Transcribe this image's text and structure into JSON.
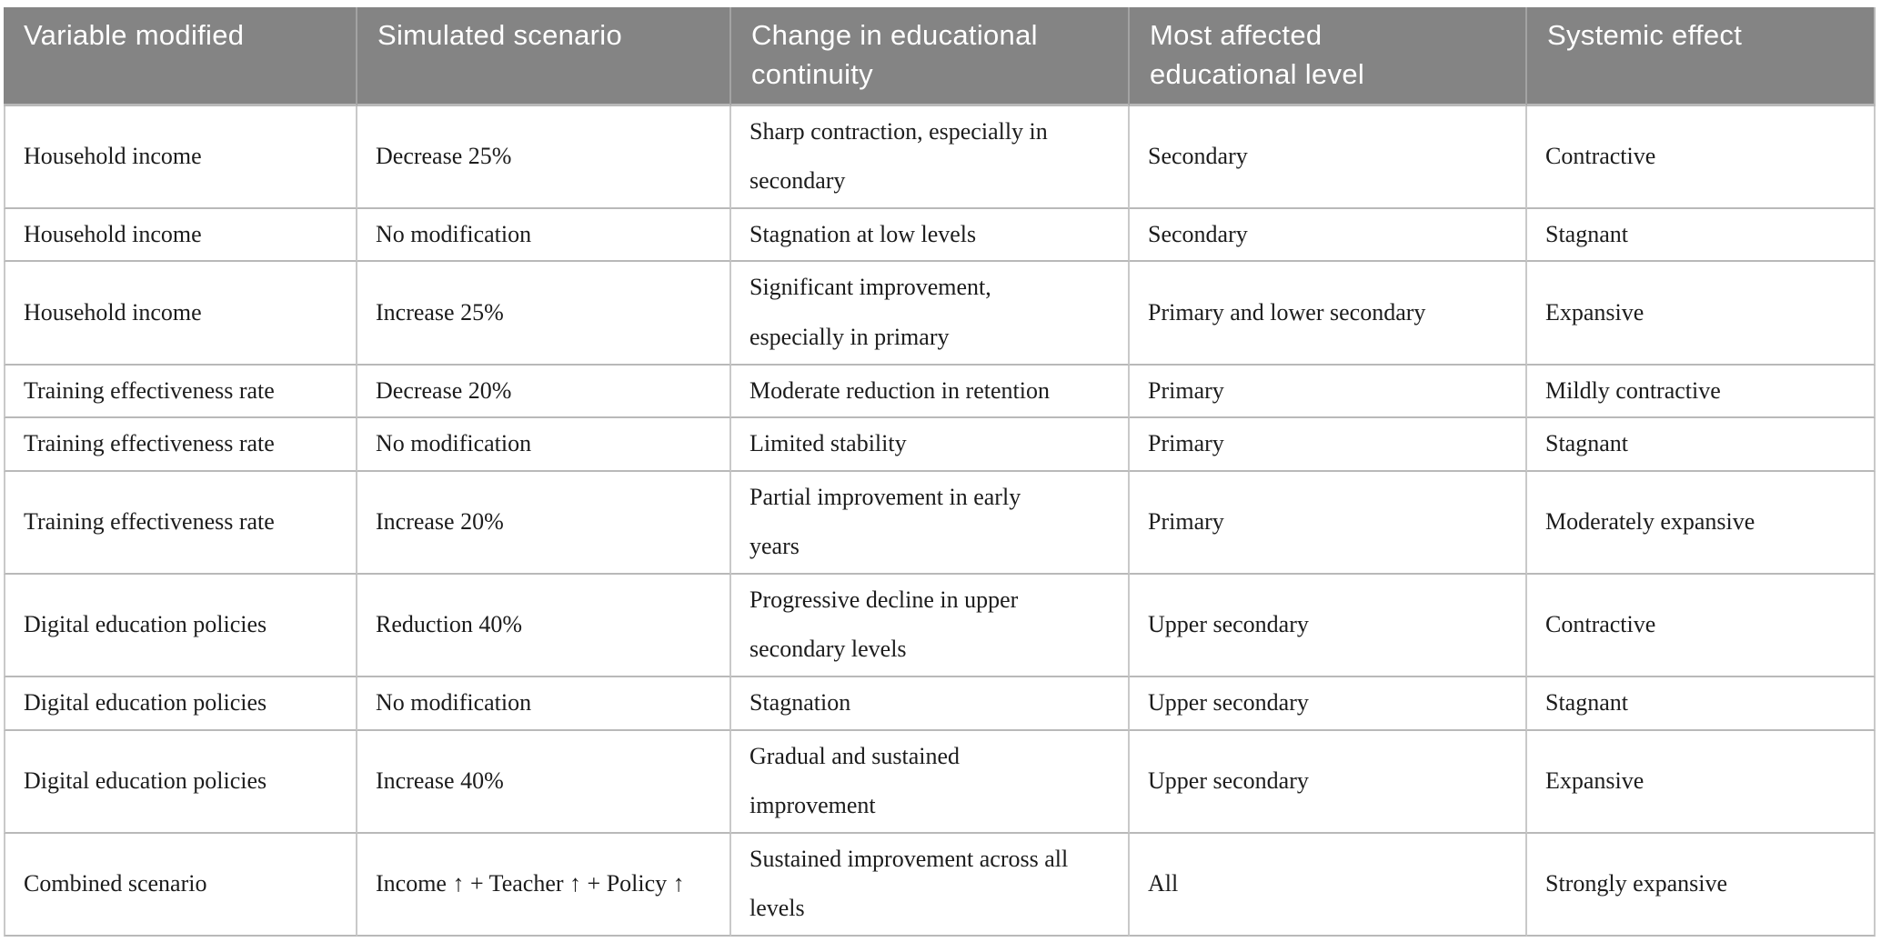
{
  "colors": {
    "header_bg": "#848484",
    "header_text": "#ffffff",
    "header_divider": "#a3a3a3",
    "header_bottom_border": "#b9b9b9",
    "row_divider": "#b9b9b9",
    "column_divider": "#c9c9c9",
    "body_text": "#1c1c1c",
    "page_bg": "#ffffff"
  },
  "table": {
    "columns": [
      {
        "id": "variable-modified",
        "label": "Variable modified"
      },
      {
        "id": "simulated-scenario",
        "label": "Simulated scenario"
      },
      {
        "id": "change-educational-continuity",
        "label": "Change in educational\ncontinuity"
      },
      {
        "id": "most-affected-level",
        "label": "Most affected\neducational level"
      },
      {
        "id": "systemic-effect",
        "label": "Systemic effect"
      }
    ],
    "rows": [
      [
        "Household income",
        "Decrease 25%",
        "Sharp contraction, especially in\nsecondary",
        "Secondary",
        "Contractive"
      ],
      [
        "Household income",
        "No modification",
        "Stagnation at low levels",
        "Secondary",
        "Stagnant"
      ],
      [
        "Household income",
        "Increase 25%",
        "Significant improvement,\nespecially in primary",
        "Primary and lower secondary",
        "Expansive"
      ],
      [
        "Training effectiveness rate",
        "Decrease 20%",
        "Moderate reduction in retention",
        "Primary",
        "Mildly contractive"
      ],
      [
        "Training effectiveness rate",
        "No modification",
        "Limited stability",
        "Primary",
        "Stagnant"
      ],
      [
        "Training effectiveness rate",
        "Increase 20%",
        "Partial improvement in early\nyears",
        "Primary",
        "Moderately expansive"
      ],
      [
        "Digital education policies",
        "Reduction 40%",
        "Progressive decline in upper\nsecondary levels",
        "Upper secondary",
        "Contractive"
      ],
      [
        "Digital education policies",
        "No modification",
        "Stagnation",
        "Upper secondary",
        "Stagnant"
      ],
      [
        "Digital education policies",
        "Increase 40%",
        "Gradual and sustained\nimprovement",
        "Upper secondary",
        "Expansive"
      ],
      [
        "Combined scenario",
        "Income ↑ + Teacher ↑ + Policy ↑",
        "Sustained improvement across all\nlevels",
        "All",
        "Strongly expansive"
      ]
    ]
  }
}
